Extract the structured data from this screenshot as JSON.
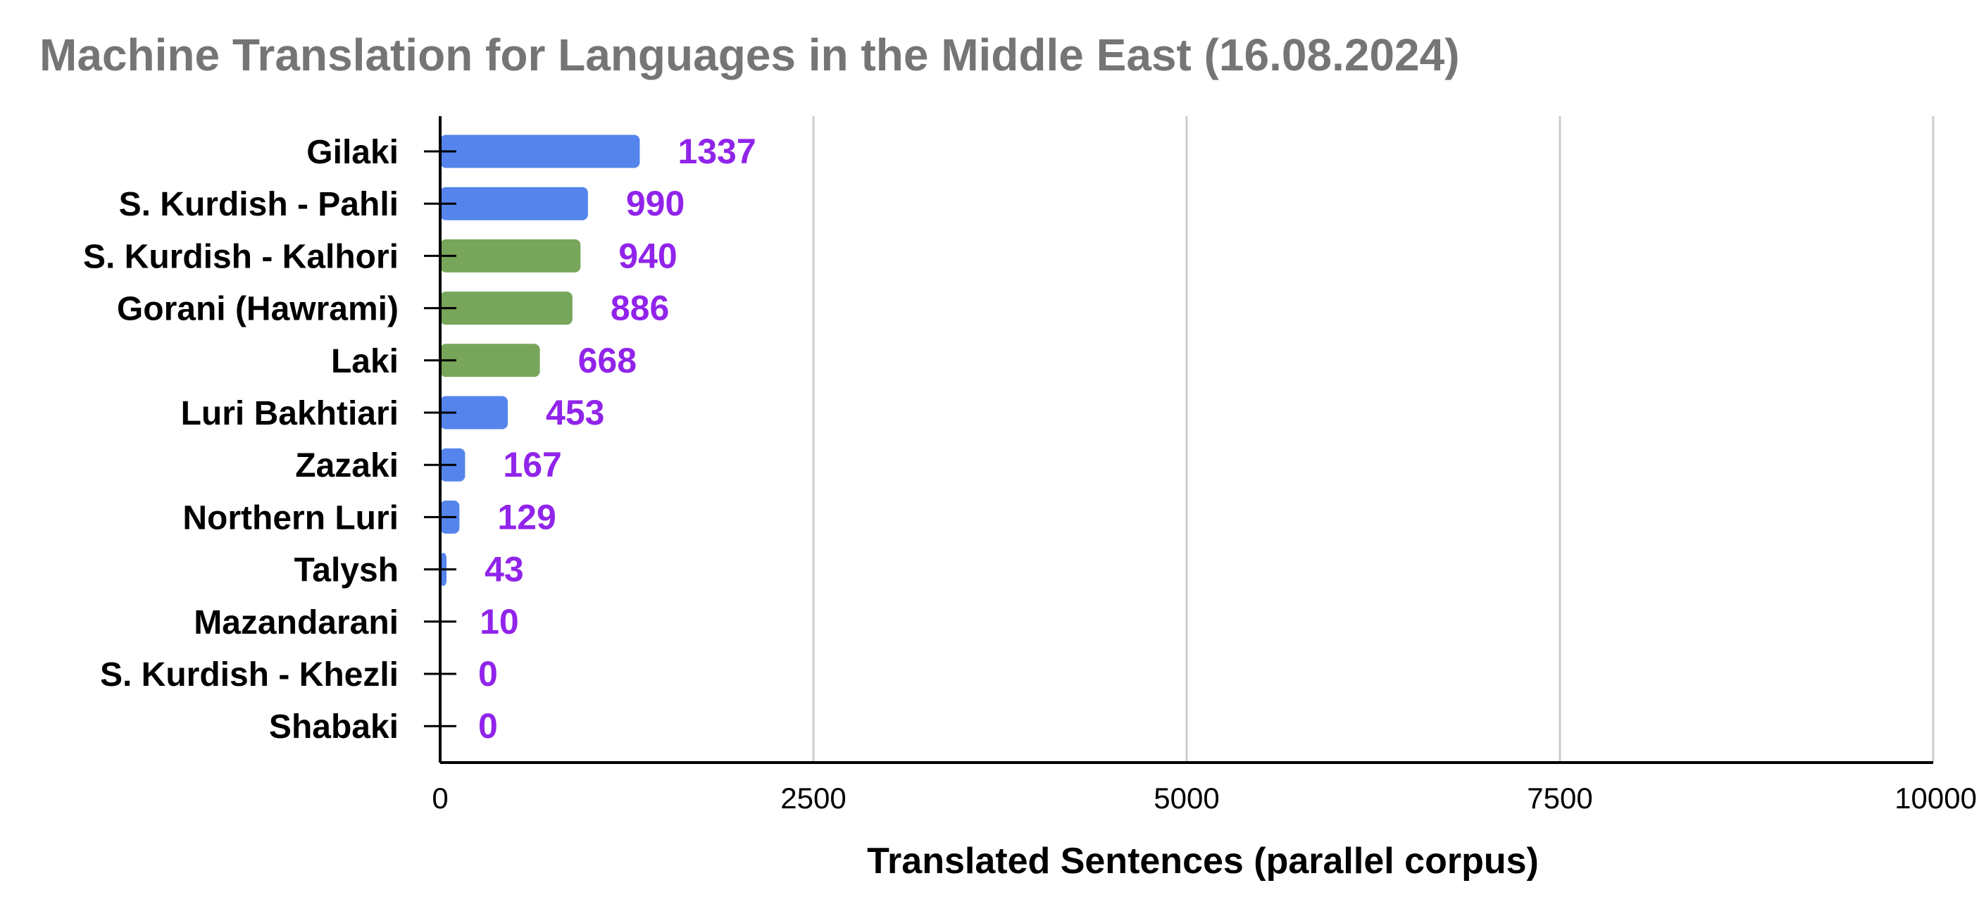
{
  "chart_data": {
    "type": "bar",
    "orientation": "horizontal",
    "title": "Machine Translation for Languages in the Middle East (16.08.2024)",
    "xlabel": "Translated Sentences (parallel corpus)",
    "ylabel": "",
    "xlim": [
      0,
      10000
    ],
    "x_ticks": [
      "0",
      "2500",
      "5000",
      "7500",
      "10000"
    ],
    "grid": "vertical",
    "legend": "none",
    "categories": [
      "Gilaki",
      "S. Kurdish - Pahli",
      "S. Kurdish - Kalhori",
      "Gorani (Hawrami)",
      "Laki",
      "Luri Bakhtiari",
      "Zazaki",
      "Northern Luri",
      "Talysh",
      "Mazandarani",
      "S. Kurdish - Khezli",
      "Shabaki"
    ],
    "values": [
      1337,
      990,
      940,
      886,
      668,
      453,
      167,
      129,
      43,
      10,
      0,
      0
    ],
    "data_labels": [
      "1337",
      "990",
      "940",
      "886",
      "668",
      "453",
      "167",
      "129",
      "43",
      "10",
      "0",
      "0"
    ],
    "bar_colors": [
      "#5585ec",
      "#5585ec",
      "#77a65b",
      "#77a65b",
      "#77a65b",
      "#5585ec",
      "#5585ec",
      "#5585ec",
      "#5585ec",
      "#5585ec",
      "#5585ec",
      "#5585ec"
    ],
    "colors": {
      "title": "#757575",
      "data_label": "#9124ea",
      "axis_text": "#000000",
      "grid": "#cccccc"
    }
  }
}
